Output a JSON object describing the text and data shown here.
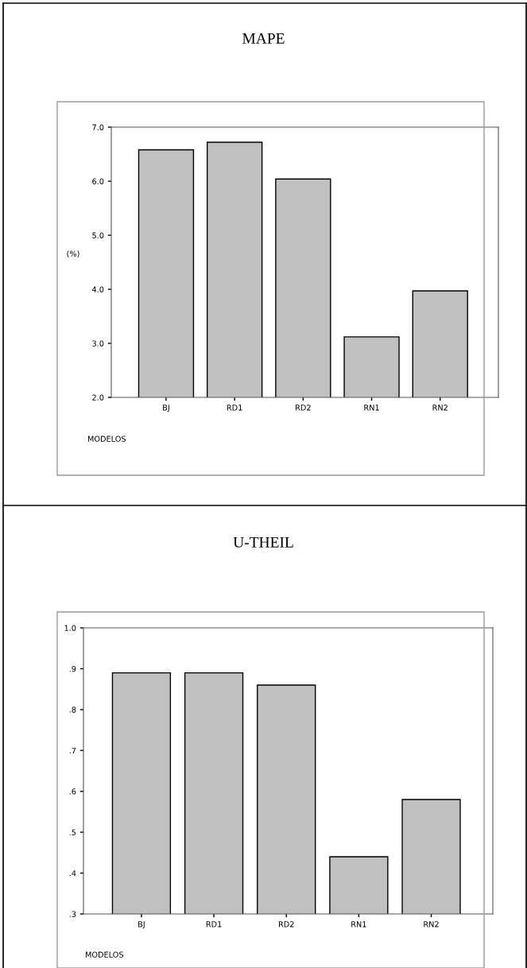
{
  "chart_data": [
    {
      "type": "bar",
      "title": "MAPE",
      "ylabel": "(%)",
      "xlabel": "MODELOS",
      "categories": [
        "BJ",
        "RD1",
        "RD2",
        "RN1",
        "RN2"
      ],
      "values": [
        6.58,
        6.72,
        6.04,
        3.12,
        3.97
      ],
      "color": "#c0c0c0",
      "ylim": [
        2,
        7
      ],
      "yticks": [
        {
          "value": 2,
          "label": "2.0"
        },
        {
          "value": 3,
          "label": "3.0"
        },
        {
          "value": 4,
          "label": "4.0"
        },
        {
          "value": 5,
          "label": "5.0"
        },
        {
          "value": 6,
          "label": "6.0"
        },
        {
          "value": 7,
          "label": "7.0"
        }
      ]
    },
    {
      "type": "bar",
      "title": "U-THEIL",
      "xlabel": "MODELOS",
      "categories": [
        "BJ",
        "RD1",
        "RD2",
        "RN1",
        "RN2"
      ],
      "values": [
        0.89,
        0.89,
        0.86,
        0.44,
        0.58
      ],
      "color": "#c0c0c0",
      "ylim": [
        0.3,
        1.0
      ],
      "yticks": [
        {
          "value": 0.3,
          "label": ".3"
        },
        {
          "value": 0.4,
          "label": ".4"
        },
        {
          "value": 0.5,
          "label": ".5"
        },
        {
          "value": 0.6,
          "label": ".6"
        },
        {
          "value": 0.7,
          "label": ".7"
        },
        {
          "value": 0.8,
          "label": ".8"
        },
        {
          "value": 0.9,
          "label": ".9"
        },
        {
          "value": 1.0,
          "label": "1.0"
        }
      ]
    }
  ]
}
